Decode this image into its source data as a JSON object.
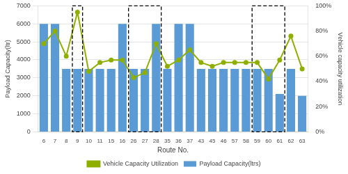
{
  "chart_data": {
    "type": "bar",
    "categories": [
      "6",
      "7",
      "8",
      "9",
      "10",
      "11",
      "15",
      "16",
      "26",
      "27",
      "28",
      "35",
      "36",
      "37",
      "43",
      "45",
      "46",
      "57",
      "58",
      "59",
      "60",
      "61",
      "62",
      "63"
    ],
    "series": [
      {
        "name": "Payload Capacity(ltrs)",
        "type": "bar",
        "color": "#5B9BD5",
        "values": [
          6000,
          6000,
          3500,
          3500,
          3500,
          3500,
          3500,
          6000,
          3500,
          3500,
          6000,
          3500,
          6000,
          6000,
          3500,
          3500,
          3500,
          3500,
          3500,
          3500,
          3500,
          2100,
          3500,
          2000
        ]
      },
      {
        "name": "Vehicle Capacity Utilization",
        "type": "line",
        "color": "#8FAF00",
        "marker": "circle",
        "axis": "y2",
        "values": [
          0.7,
          0.8,
          0.6,
          0.95,
          0.48,
          0.55,
          0.57,
          0.57,
          0.43,
          0.47,
          0.7,
          0.52,
          0.57,
          0.65,
          0.55,
          0.52,
          0.55,
          0.55,
          0.55,
          0.55,
          0.42,
          0.57,
          0.76,
          0.5
        ]
      }
    ],
    "x_label": "Route No.",
    "y_label": "Payload Capacity(ltr)",
    "y2_label": "Vehicle capacity utilization",
    "ylim": [
      0,
      7000
    ],
    "yticks": [
      0,
      1000,
      2000,
      3000,
      4000,
      5000,
      6000,
      7000
    ],
    "y2lim": [
      0,
      1.0
    ],
    "y2ticks": [
      {
        "value": 0,
        "label": "0%"
      },
      {
        "value": 0.2,
        "label": "20%"
      },
      {
        "value": 0.4,
        "label": "40%"
      },
      {
        "value": 0.6,
        "label": "60%"
      },
      {
        "value": 0.8,
        "label": "80%"
      },
      {
        "value": 1.0,
        "label": "100%"
      }
    ],
    "grid": "y",
    "legend": "bottom",
    "boxes": [
      {
        "from": "9",
        "to": "9"
      },
      {
        "from": "26",
        "to": "28"
      },
      {
        "from": "59",
        "to": "61"
      }
    ]
  }
}
